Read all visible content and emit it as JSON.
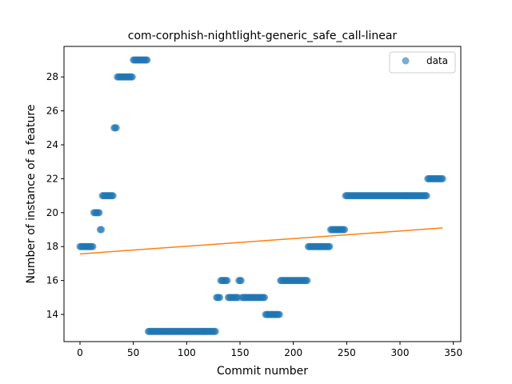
{
  "chart_data": {
    "type": "scatter",
    "title": "com-corphish-nightlight-generic_safe_call-linear",
    "xlabel": "Commit number",
    "ylabel": "Number of instance of a feature",
    "xlim": [
      -15,
      357
    ],
    "ylim": [
      12.4,
      29.8
    ],
    "xticks": [
      0,
      50,
      100,
      150,
      200,
      250,
      300,
      350
    ],
    "yticks": [
      14,
      16,
      18,
      20,
      22,
      24,
      26,
      28
    ],
    "legend": {
      "position": "upper-right",
      "entries": [
        "data"
      ]
    },
    "colors": {
      "data": "#1f77b4",
      "fit": "#ff7f0e"
    },
    "series": [
      {
        "name": "data",
        "kind": "scatter",
        "segments": [
          {
            "x_start": 0,
            "x_end": 12,
            "y": 18
          },
          {
            "x_start": 13,
            "x_end": 18,
            "y": 20
          },
          {
            "x_start": 19,
            "x_end": 20,
            "y": 19
          },
          {
            "x_start": 21,
            "x_end": 31,
            "y": 21
          },
          {
            "x_start": 32,
            "x_end": 34,
            "y": 25
          },
          {
            "x_start": 35,
            "x_end": 49,
            "y": 28
          },
          {
            "x_start": 50,
            "x_end": 63,
            "y": 29
          },
          {
            "x_start": 64,
            "x_end": 127,
            "y": 13
          },
          {
            "x_start": 128,
            "x_end": 131,
            "y": 15
          },
          {
            "x_start": 132,
            "x_end": 138,
            "y": 16
          },
          {
            "x_start": 139,
            "x_end": 148,
            "y": 15
          },
          {
            "x_start": 149,
            "x_end": 151,
            "y": 16
          },
          {
            "x_start": 152,
            "x_end": 173,
            "y": 15
          },
          {
            "x_start": 174,
            "x_end": 187,
            "y": 14
          },
          {
            "x_start": 188,
            "x_end": 213,
            "y": 16
          },
          {
            "x_start": 214,
            "x_end": 234,
            "y": 18
          },
          {
            "x_start": 235,
            "x_end": 248,
            "y": 19
          },
          {
            "x_start": 249,
            "x_end": 325,
            "y": 21
          },
          {
            "x_start": 326,
            "x_end": 340,
            "y": 22
          }
        ]
      },
      {
        "name": "",
        "kind": "line",
        "x": [
          0,
          340
        ],
        "y": [
          17.57,
          19.1
        ]
      }
    ]
  }
}
